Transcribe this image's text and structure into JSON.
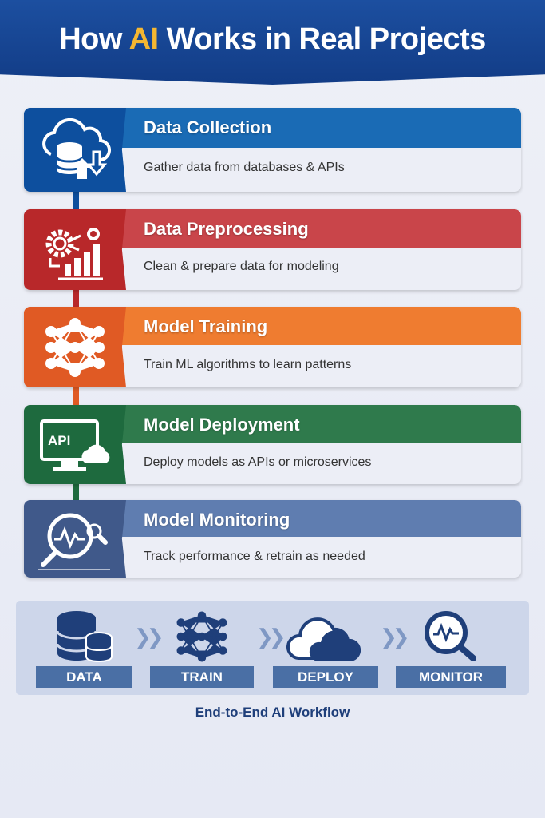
{
  "header": {
    "title_before": "How ",
    "title_highlight": "AI",
    "title_after": " Works in Real Projects"
  },
  "steps": [
    {
      "title": "Data Collection",
      "description": "Gather data from databases & APIs",
      "icon": "cloud-database-icon",
      "color": "#1a6bb5",
      "icon_bg": "#0d4f9e"
    },
    {
      "title": "Data Preprocessing",
      "description": "Clean & prepare data for modeling",
      "icon": "gear-chart-icon",
      "color": "#c9454a",
      "icon_bg": "#b8282a"
    },
    {
      "title": "Model Training",
      "description": "Train ML algorithms to learn patterns",
      "icon": "neural-network-icon",
      "color": "#ef7c30",
      "icon_bg": "#e05a24"
    },
    {
      "title": "Model Deployment",
      "description": "Deploy models as APIs or microservices",
      "icon": "monitor-api-icon",
      "color": "#2f7a4c",
      "icon_bg": "#1e6a3e",
      "icon_text": "API"
    },
    {
      "title": "Model Monitoring",
      "description": "Track performance & retrain as needed",
      "icon": "magnifier-chart-icon",
      "color": "#5f7db0",
      "icon_bg": "#40598a"
    }
  ],
  "workflow": {
    "items": [
      "DATA",
      "TRAIN",
      "DEPLOY",
      "MONITOR"
    ],
    "caption": "End-to-End AI Workflow"
  }
}
